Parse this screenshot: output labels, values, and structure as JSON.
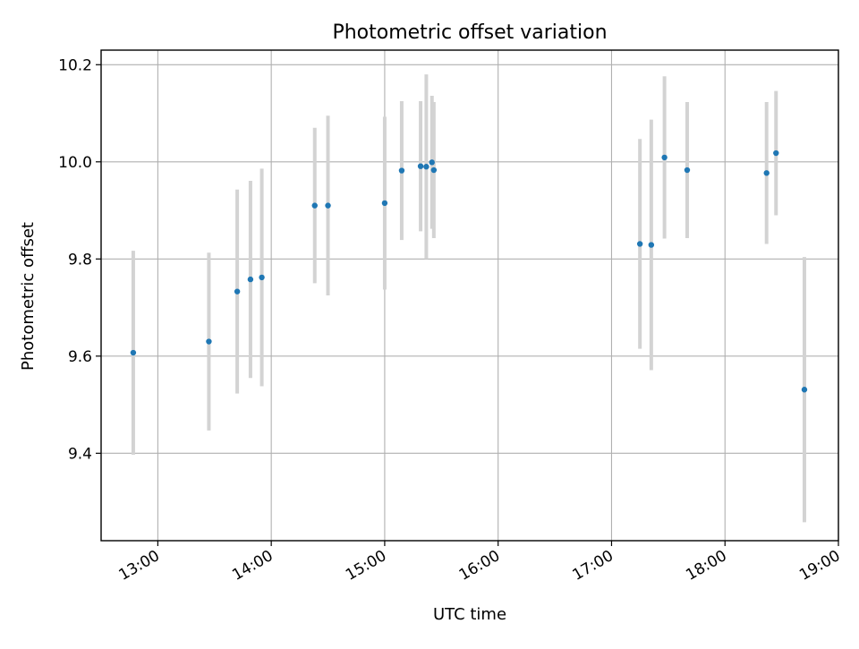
{
  "chart_data": {
    "type": "scatter",
    "title": "Photometric offset variation",
    "xlabel": "UTC time",
    "ylabel": "Photometric offset",
    "x_unit": "UTC hours",
    "xlim": [
      "12:30",
      "19:00"
    ],
    "ylim": [
      9.22,
      10.23
    ],
    "x_ticks": [
      "13:00",
      "14:00",
      "15:00",
      "16:00",
      "17:00",
      "18:00",
      "19:00"
    ],
    "y_ticks": [
      "9.4",
      "9.6",
      "9.8",
      "10.0",
      "10.2"
    ],
    "grid": true,
    "legend": "none",
    "points": [
      {
        "x": "12:47",
        "y": 9.607,
        "err": 0.21
      },
      {
        "x": "13:27",
        "y": 9.63,
        "err": 0.183
      },
      {
        "x": "13:42",
        "y": 9.733,
        "err": 0.21
      },
      {
        "x": "13:49",
        "y": 9.758,
        "err": 0.203
      },
      {
        "x": "13:55",
        "y": 9.762,
        "err": 0.224
      },
      {
        "x": "14:23",
        "y": 9.91,
        "err": 0.16
      },
      {
        "x": "14:30",
        "y": 9.91,
        "err": 0.185
      },
      {
        "x": "15:00",
        "y": 9.915,
        "err": 0.178
      },
      {
        "x": "15:09",
        "y": 9.982,
        "err": 0.143
      },
      {
        "x": "15:19",
        "y": 9.991,
        "err": 0.134
      },
      {
        "x": "15:22",
        "y": 9.99,
        "err": 0.19
      },
      {
        "x": "15:25",
        "y": 9.999,
        "err": 0.137
      },
      {
        "x": "15:26",
        "y": 9.983,
        "err": 0.14
      },
      {
        "x": "17:15",
        "y": 9.831,
        "err": 0.216
      },
      {
        "x": "17:21",
        "y": 9.829,
        "err": 0.258
      },
      {
        "x": "17:28",
        "y": 10.009,
        "err": 0.167
      },
      {
        "x": "17:40",
        "y": 9.983,
        "err": 0.14
      },
      {
        "x": "18:22",
        "y": 9.977,
        "err": 0.146
      },
      {
        "x": "18:27",
        "y": 10.018,
        "err": 0.128
      },
      {
        "x": "18:42",
        "y": 9.531,
        "err": 0.273
      }
    ],
    "colors": {
      "point": "#1f77b4",
      "errorbar": "#d3d3d3",
      "grid": "#b0b0b0",
      "axes": "#000000"
    }
  }
}
